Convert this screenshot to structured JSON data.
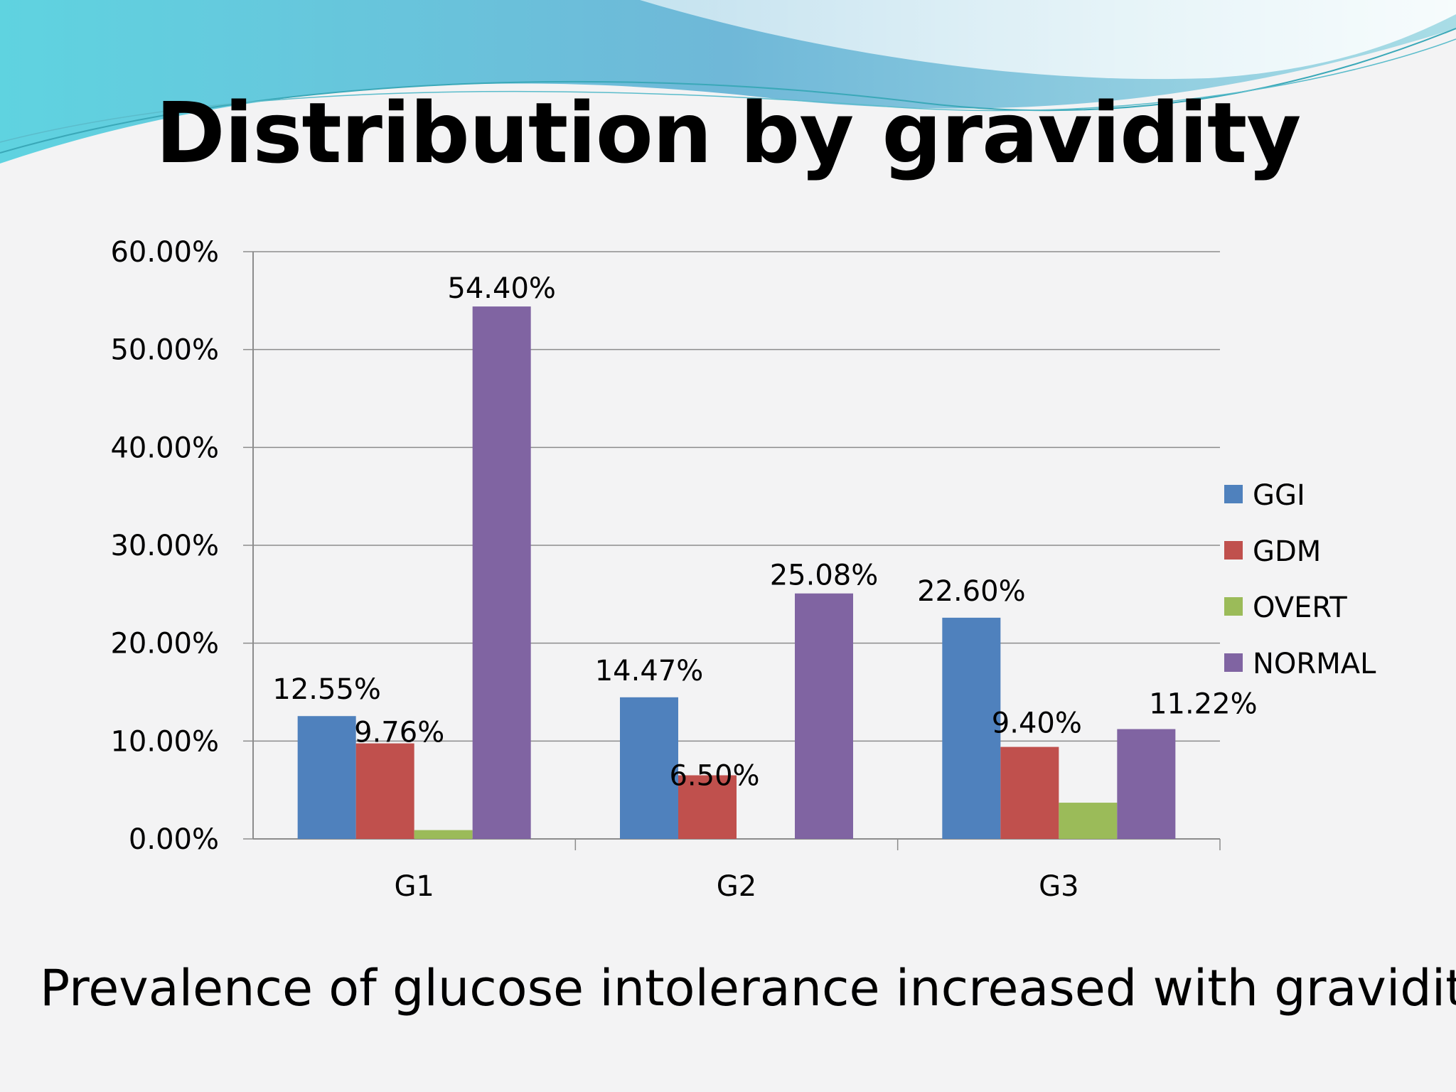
{
  "slide": {
    "title": "Distribution by gravidity",
    "subtitle": "Prevalence of glucose intolerance increased with gravidity"
  },
  "chart_data": {
    "type": "bar",
    "categories": [
      "G1",
      "G2",
      "G3"
    ],
    "series": [
      {
        "name": "GGI",
        "color": "#4f81bd",
        "values": [
          12.55,
          14.47,
          22.6
        ],
        "labels": [
          "12.55%",
          "14.47%",
          "22.60%"
        ]
      },
      {
        "name": "GDM",
        "color": "#c0504d",
        "values": [
          9.76,
          6.5,
          9.4
        ],
        "labels": [
          "9.76%",
          "6.50%",
          "9.40%"
        ]
      },
      {
        "name": "OVERT",
        "color": "#9bbb59",
        "values": [
          0.9,
          0,
          3.7
        ],
        "labels": [
          "",
          "",
          ""
        ]
      },
      {
        "name": "NORMAL",
        "color": "#8064a2",
        "values": [
          54.4,
          25.08,
          11.22
        ],
        "labels": [
          "54.40%",
          "25.08%",
          "11.22%"
        ]
      }
    ],
    "y_ticks": [
      "0.00%",
      "10.00%",
      "20.00%",
      "30.00%",
      "40.00%",
      "50.00%",
      "60.00%"
    ],
    "ylim": [
      0,
      60
    ],
    "grid": true,
    "legend": "right"
  }
}
